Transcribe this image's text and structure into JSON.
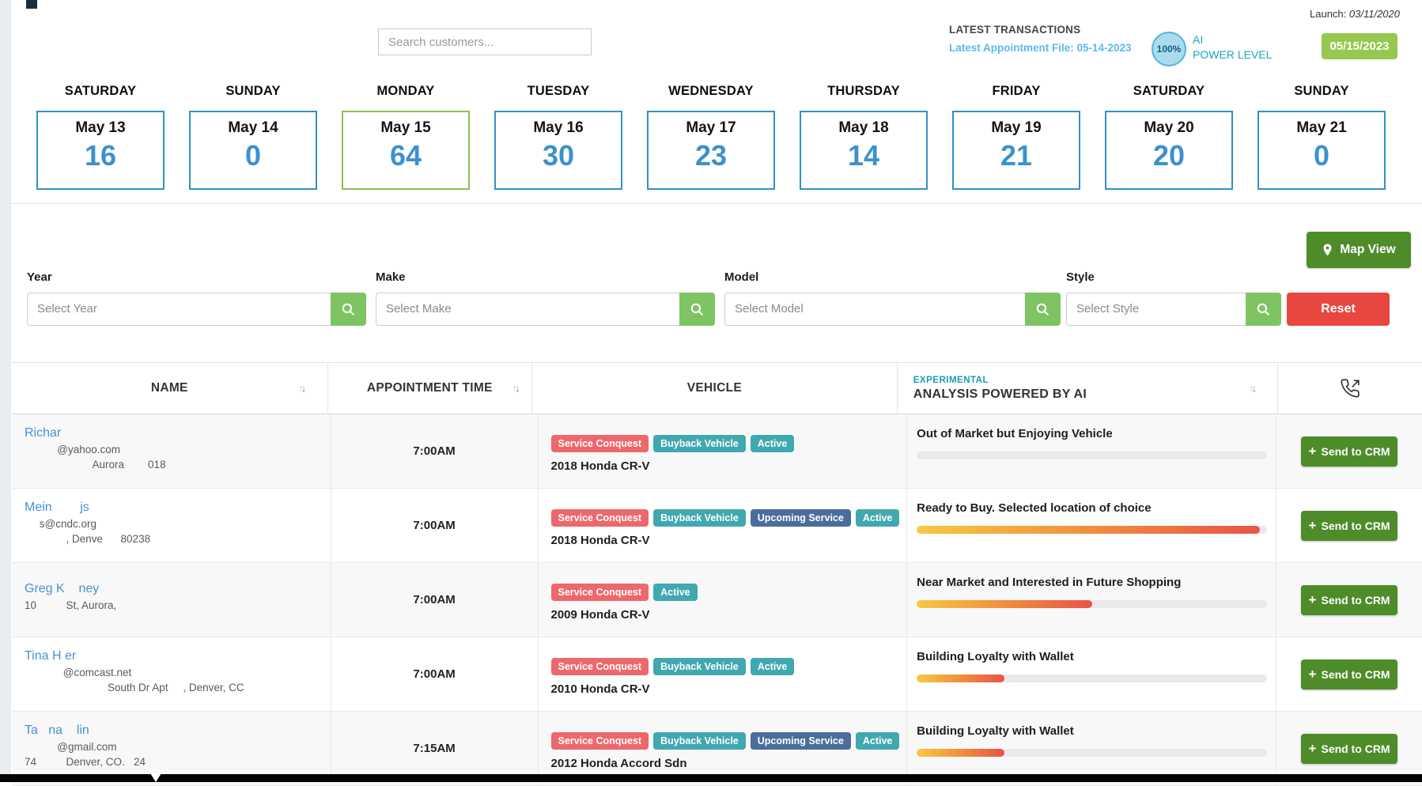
{
  "topbar": {
    "search_placeholder": "Search customers...",
    "launch_label": "Launch:",
    "launch_date": "03/11/2020",
    "latest_transactions": "LATEST TRANSACTIONS",
    "latest_file": "Latest Appointment File: 05-14-2023",
    "power_percent": "100%",
    "power_line1": "AI",
    "power_line2": "POWER LEVEL",
    "date_button": "05/15/2023"
  },
  "days": [
    {
      "day": "SATURDAY",
      "date": "May 13",
      "count": "16",
      "selected": false
    },
    {
      "day": "SUNDAY",
      "date": "May 14",
      "count": "0",
      "selected": false
    },
    {
      "day": "MONDAY",
      "date": "May 15",
      "count": "64",
      "selected": true
    },
    {
      "day": "TUESDAY",
      "date": "May 16",
      "count": "30",
      "selected": false
    },
    {
      "day": "WEDNESDAY",
      "date": "May 17",
      "count": "23",
      "selected": false
    },
    {
      "day": "THURSDAY",
      "date": "May 18",
      "count": "14",
      "selected": false
    },
    {
      "day": "FRIDAY",
      "date": "May 19",
      "count": "21",
      "selected": false
    },
    {
      "day": "SATURDAY",
      "date": "May 20",
      "count": "20",
      "selected": false
    },
    {
      "day": "SUNDAY",
      "date": "May 21",
      "count": "0",
      "selected": false
    }
  ],
  "filters": {
    "map_view": "Map View",
    "reset": "Reset",
    "fields": [
      {
        "label": "Year",
        "placeholder": "Select Year"
      },
      {
        "label": "Make",
        "placeholder": "Select Make"
      },
      {
        "label": "Model",
        "placeholder": "Select Model"
      },
      {
        "label": "Style",
        "placeholder": "Select Style"
      }
    ]
  },
  "table": {
    "headers": {
      "name": "NAME",
      "time": "APPOINTMENT TIME",
      "vehicle": "VEHICLE",
      "experimental": "EXPERIMENTAL",
      "analysis": "ANALYSIS POWERED BY AI"
    },
    "crm_plus": "+",
    "crm_label": "Send to CRM",
    "rows": [
      {
        "name": "Richar",
        "email": "           @yahoo.com",
        "address": "                       Aurora        018",
        "time": "7:00AM",
        "badges": [
          "Service Conquest",
          "Buyback Vehicle",
          "Active"
        ],
        "vehicle": "2018 Honda CR-V",
        "analysis": "Out of Market but Enjoying Vehicle",
        "progress": 0
      },
      {
        "name": "Mein        js",
        "email": "     s@cndc.org",
        "address": "              , Denve      80238",
        "time": "7:00AM",
        "badges": [
          "Service Conquest",
          "Buyback Vehicle",
          "Upcoming Service",
          "Active"
        ],
        "vehicle": "2018 Honda CR-V",
        "analysis": "Ready to Buy. Selected location of choice",
        "progress": 98
      },
      {
        "name": "Greg K    ney",
        "address": "10          St, Aurora,",
        "time": "7:00AM",
        "badges": [
          "Service Conquest",
          "Active"
        ],
        "vehicle": "2009 Honda CR-V",
        "analysis": "Near Market and Interested in Future Shopping",
        "progress": 50
      },
      {
        "name": "Tina H er",
        "email": "             @comcast.net",
        "address": "                            South Dr Apt     , Denver, CC",
        "time": "7:00AM",
        "badges": [
          "Service Conquest",
          "Buyback Vehicle",
          "Active"
        ],
        "vehicle": "2010 Honda CR-V",
        "analysis": "Building Loyalty with Wallet",
        "progress": 25
      },
      {
        "name": "Ta   na    lin",
        "email": "           @gmail.com",
        "address": "74          Denver, CO.   24",
        "time": "7:15AM",
        "badges": [
          "Service Conquest",
          "Buyback Vehicle",
          "Upcoming Service",
          "Active"
        ],
        "vehicle": "2012 Honda Accord Sdn",
        "analysis": "Building Loyalty with Wallet",
        "progress": 25
      }
    ]
  },
  "colors": {
    "card_border_blue": "#3191c8",
    "card_border_selected_green": "#8cc152",
    "count_blue": "#3d91cd",
    "dark_green_button": "#4e8c2a",
    "light_green_button": "#7ec462",
    "date_button_green": "#96c84f",
    "reset_red": "#e8473f",
    "badge_red": "#ec686c",
    "badge_teal": "#41a8b0",
    "badge_slate": "#4a6d9c",
    "link_blue": "#4a90d2",
    "teal_text": "#18a6c0",
    "light_blue_text": "#5cb8f0",
    "progress_gradient": [
      "#f7c844",
      "#f0893c",
      "#e9534a"
    ]
  }
}
